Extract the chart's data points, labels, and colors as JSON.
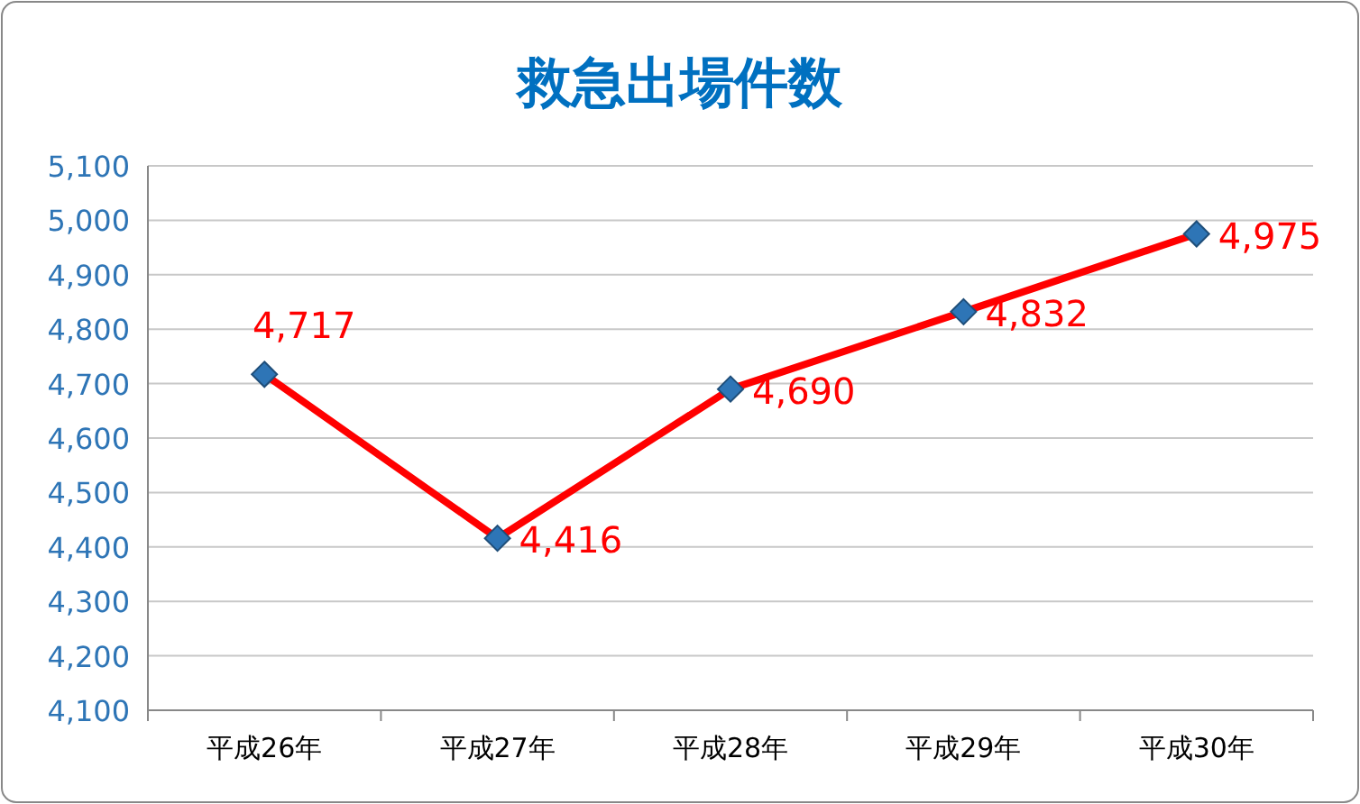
{
  "chart_data": {
    "type": "line",
    "title": "救急出場件数",
    "categories": [
      "平成26年",
      "平成27年",
      "平成28年",
      "平成29年",
      "平成30年"
    ],
    "series": [
      {
        "color": "#ff0000",
        "values": [
          4717,
          4416,
          4690,
          4832,
          4975
        ],
        "value_labels": [
          "4,717",
          "4,416",
          "4,690",
          "4,832",
          "4,975"
        ]
      }
    ],
    "ylim": [
      4100,
      5100
    ],
    "yticks": [
      {
        "value": 4100,
        "label": "4,100"
      },
      {
        "value": 4200,
        "label": "4,200"
      },
      {
        "value": 4300,
        "label": "4,300"
      },
      {
        "value": 4400,
        "label": "4,400"
      },
      {
        "value": 4500,
        "label": "4,500"
      },
      {
        "value": 4600,
        "label": "4,600"
      },
      {
        "value": 4700,
        "label": "4,700"
      },
      {
        "value": 4800,
        "label": "4,800"
      },
      {
        "value": 4900,
        "label": "4,900"
      },
      {
        "value": 5000,
        "label": "5,000"
      },
      {
        "value": 5100,
        "label": "5,100"
      }
    ],
    "grid": "y",
    "marker": "diamond",
    "line_style": "solid"
  }
}
